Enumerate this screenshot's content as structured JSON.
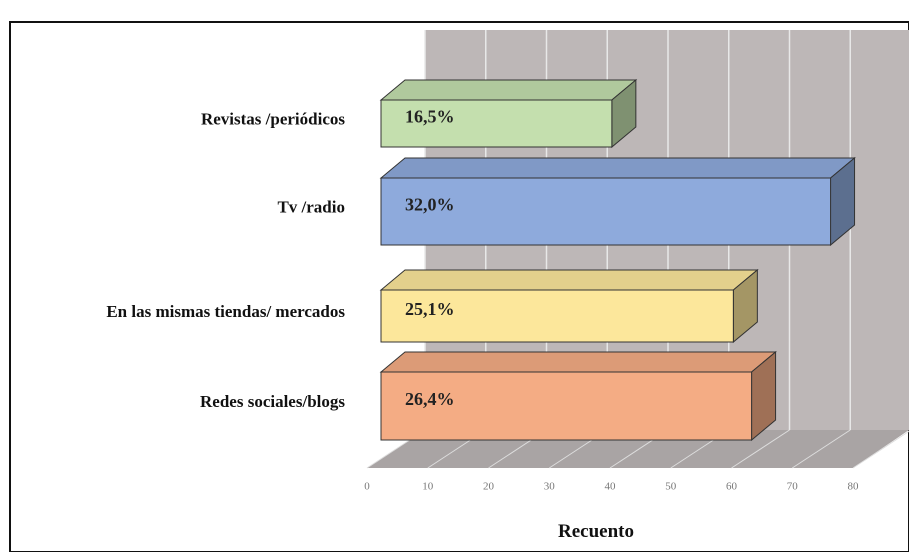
{
  "chart_data": {
    "type": "bar3d_horizontal",
    "categories": [
      "Revistas /periódicos",
      "Tv /radio",
      "En las mismas tiendas/ mercados",
      "Redes sociales/blogs"
    ],
    "values": [
      38,
      74,
      58,
      61
    ],
    "data_labels": [
      "16,5%",
      "32,0%",
      "25,1%",
      "26,4%"
    ],
    "colors": [
      "#c4dfae",
      "#8eaadc",
      "#fce79b",
      "#f4ac84"
    ],
    "xlim": [
      0,
      80
    ],
    "xticks": [
      0,
      10,
      20,
      30,
      40,
      50,
      60,
      70,
      80
    ],
    "xlabel": "Recuento",
    "grid": true
  }
}
